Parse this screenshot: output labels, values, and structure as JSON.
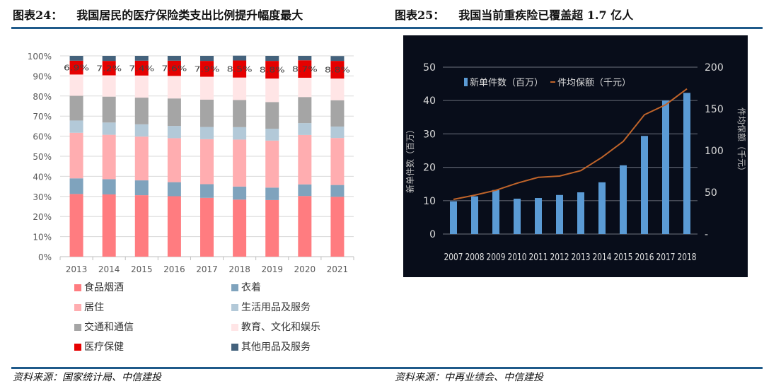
{
  "left_figure": {
    "label": "图表24：",
    "title": "我国居民的医疗保险类支出比例提升幅度最大",
    "source": "资料来源：国家统计局、中信建投"
  },
  "right_figure": {
    "label": "图表25：",
    "title": "我国当前重疾险已覆盖超 1.7 亿人",
    "source": "资料来源：中再业绩会、中信建投"
  },
  "chart_data": [
    {
      "type": "bar",
      "stacked": true,
      "percent": true,
      "title": "我国居民的医疗保险类支出比例提升幅度最大",
      "categories": [
        "2013",
        "2014",
        "2015",
        "2016",
        "2017",
        "2018",
        "2019",
        "2020",
        "2021"
      ],
      "y_ticks": [
        "0%",
        "10%",
        "20%",
        "30%",
        "40%",
        "50%",
        "60%",
        "70%",
        "80%",
        "90%",
        "100%"
      ],
      "ylim": [
        0,
        100
      ],
      "grid": true,
      "legend_position": "bottom",
      "series": [
        {
          "name": "食品烟酒",
          "color": "#ff7c80",
          "values": [
            31.2,
            31.0,
            30.6,
            30.1,
            29.3,
            28.4,
            28.2,
            30.2,
            29.8
          ]
        },
        {
          "name": "衣着",
          "color": "#7fa3bd",
          "values": [
            7.8,
            7.6,
            7.4,
            7.0,
            6.8,
            6.5,
            6.2,
            5.8,
            5.9
          ]
        },
        {
          "name": "居住",
          "color": "#ffadb0",
          "values": [
            22.7,
            22.1,
            21.8,
            21.9,
            22.4,
            23.4,
            23.4,
            24.6,
            23.4
          ]
        },
        {
          "name": "生活用品及服务",
          "color": "#b3c9d8",
          "values": [
            6.1,
            6.1,
            6.1,
            6.1,
            6.1,
            6.2,
            5.9,
            5.9,
            5.7
          ]
        },
        {
          "name": "交通和通信",
          "color": "#a5a5a5",
          "values": [
            12.3,
            12.9,
            13.3,
            13.7,
            13.6,
            13.5,
            13.3,
            13.0,
            13.1
          ]
        },
        {
          "name": "教育、文化和娱乐",
          "color": "#ffe5e6",
          "values": [
            10.6,
            10.6,
            11.0,
            11.2,
            11.4,
            11.2,
            11.7,
            9.6,
            10.8
          ]
        },
        {
          "name": "医疗保健",
          "color": "#e60000",
          "values": [
            6.9,
            7.2,
            7.4,
            7.6,
            7.9,
            8.5,
            8.8,
            8.7,
            8.8
          ]
        },
        {
          "name": "其他用品及服务",
          "color": "#44627c",
          "values": [
            2.4,
            2.5,
            2.4,
            2.4,
            2.5,
            2.4,
            2.5,
            2.2,
            2.4
          ]
        }
      ],
      "data_labels": [
        "6.9%",
        "7.2%",
        "7.4%",
        "7.6%",
        "7.9%",
        "8.5%",
        "8.8%",
        "8.7%",
        "8.8%"
      ]
    },
    {
      "type": "bar",
      "combo": "bar+line",
      "title": "我国当前重疾险已覆盖超 1.7 亿人",
      "categories": [
        "2007",
        "2008",
        "2009",
        "2010",
        "2011",
        "2012",
        "2013",
        "2014",
        "2015",
        "2016",
        "2017",
        "2018"
      ],
      "ylabel": "新单件数（百万）",
      "y2label": "件均保额（千元）",
      "ylim": [
        0,
        50
      ],
      "y2lim": [
        0,
        200
      ],
      "y_ticks": [
        "0",
        "10",
        "20",
        "30",
        "40",
        "50"
      ],
      "y2_ticks": [
        "-",
        "50",
        "100",
        "150",
        "200"
      ],
      "grid": true,
      "legend_position": "top",
      "series": [
        {
          "name": "新单件数（百万）",
          "type": "bar",
          "axis": "left",
          "color": "#5b9bd5",
          "values": [
            9.8,
            11.3,
            13.2,
            10.6,
            10.8,
            11.7,
            12.5,
            15.5,
            20.6,
            29.4,
            40.0,
            42.3
          ]
        },
        {
          "name": "件均保额（千元）",
          "type": "line",
          "axis": "right",
          "color": "#c0642a",
          "values": [
            41.5,
            46.6,
            52.5,
            61,
            68,
            69.5,
            76,
            92,
            111,
            143,
            155,
            174
          ]
        }
      ]
    }
  ]
}
